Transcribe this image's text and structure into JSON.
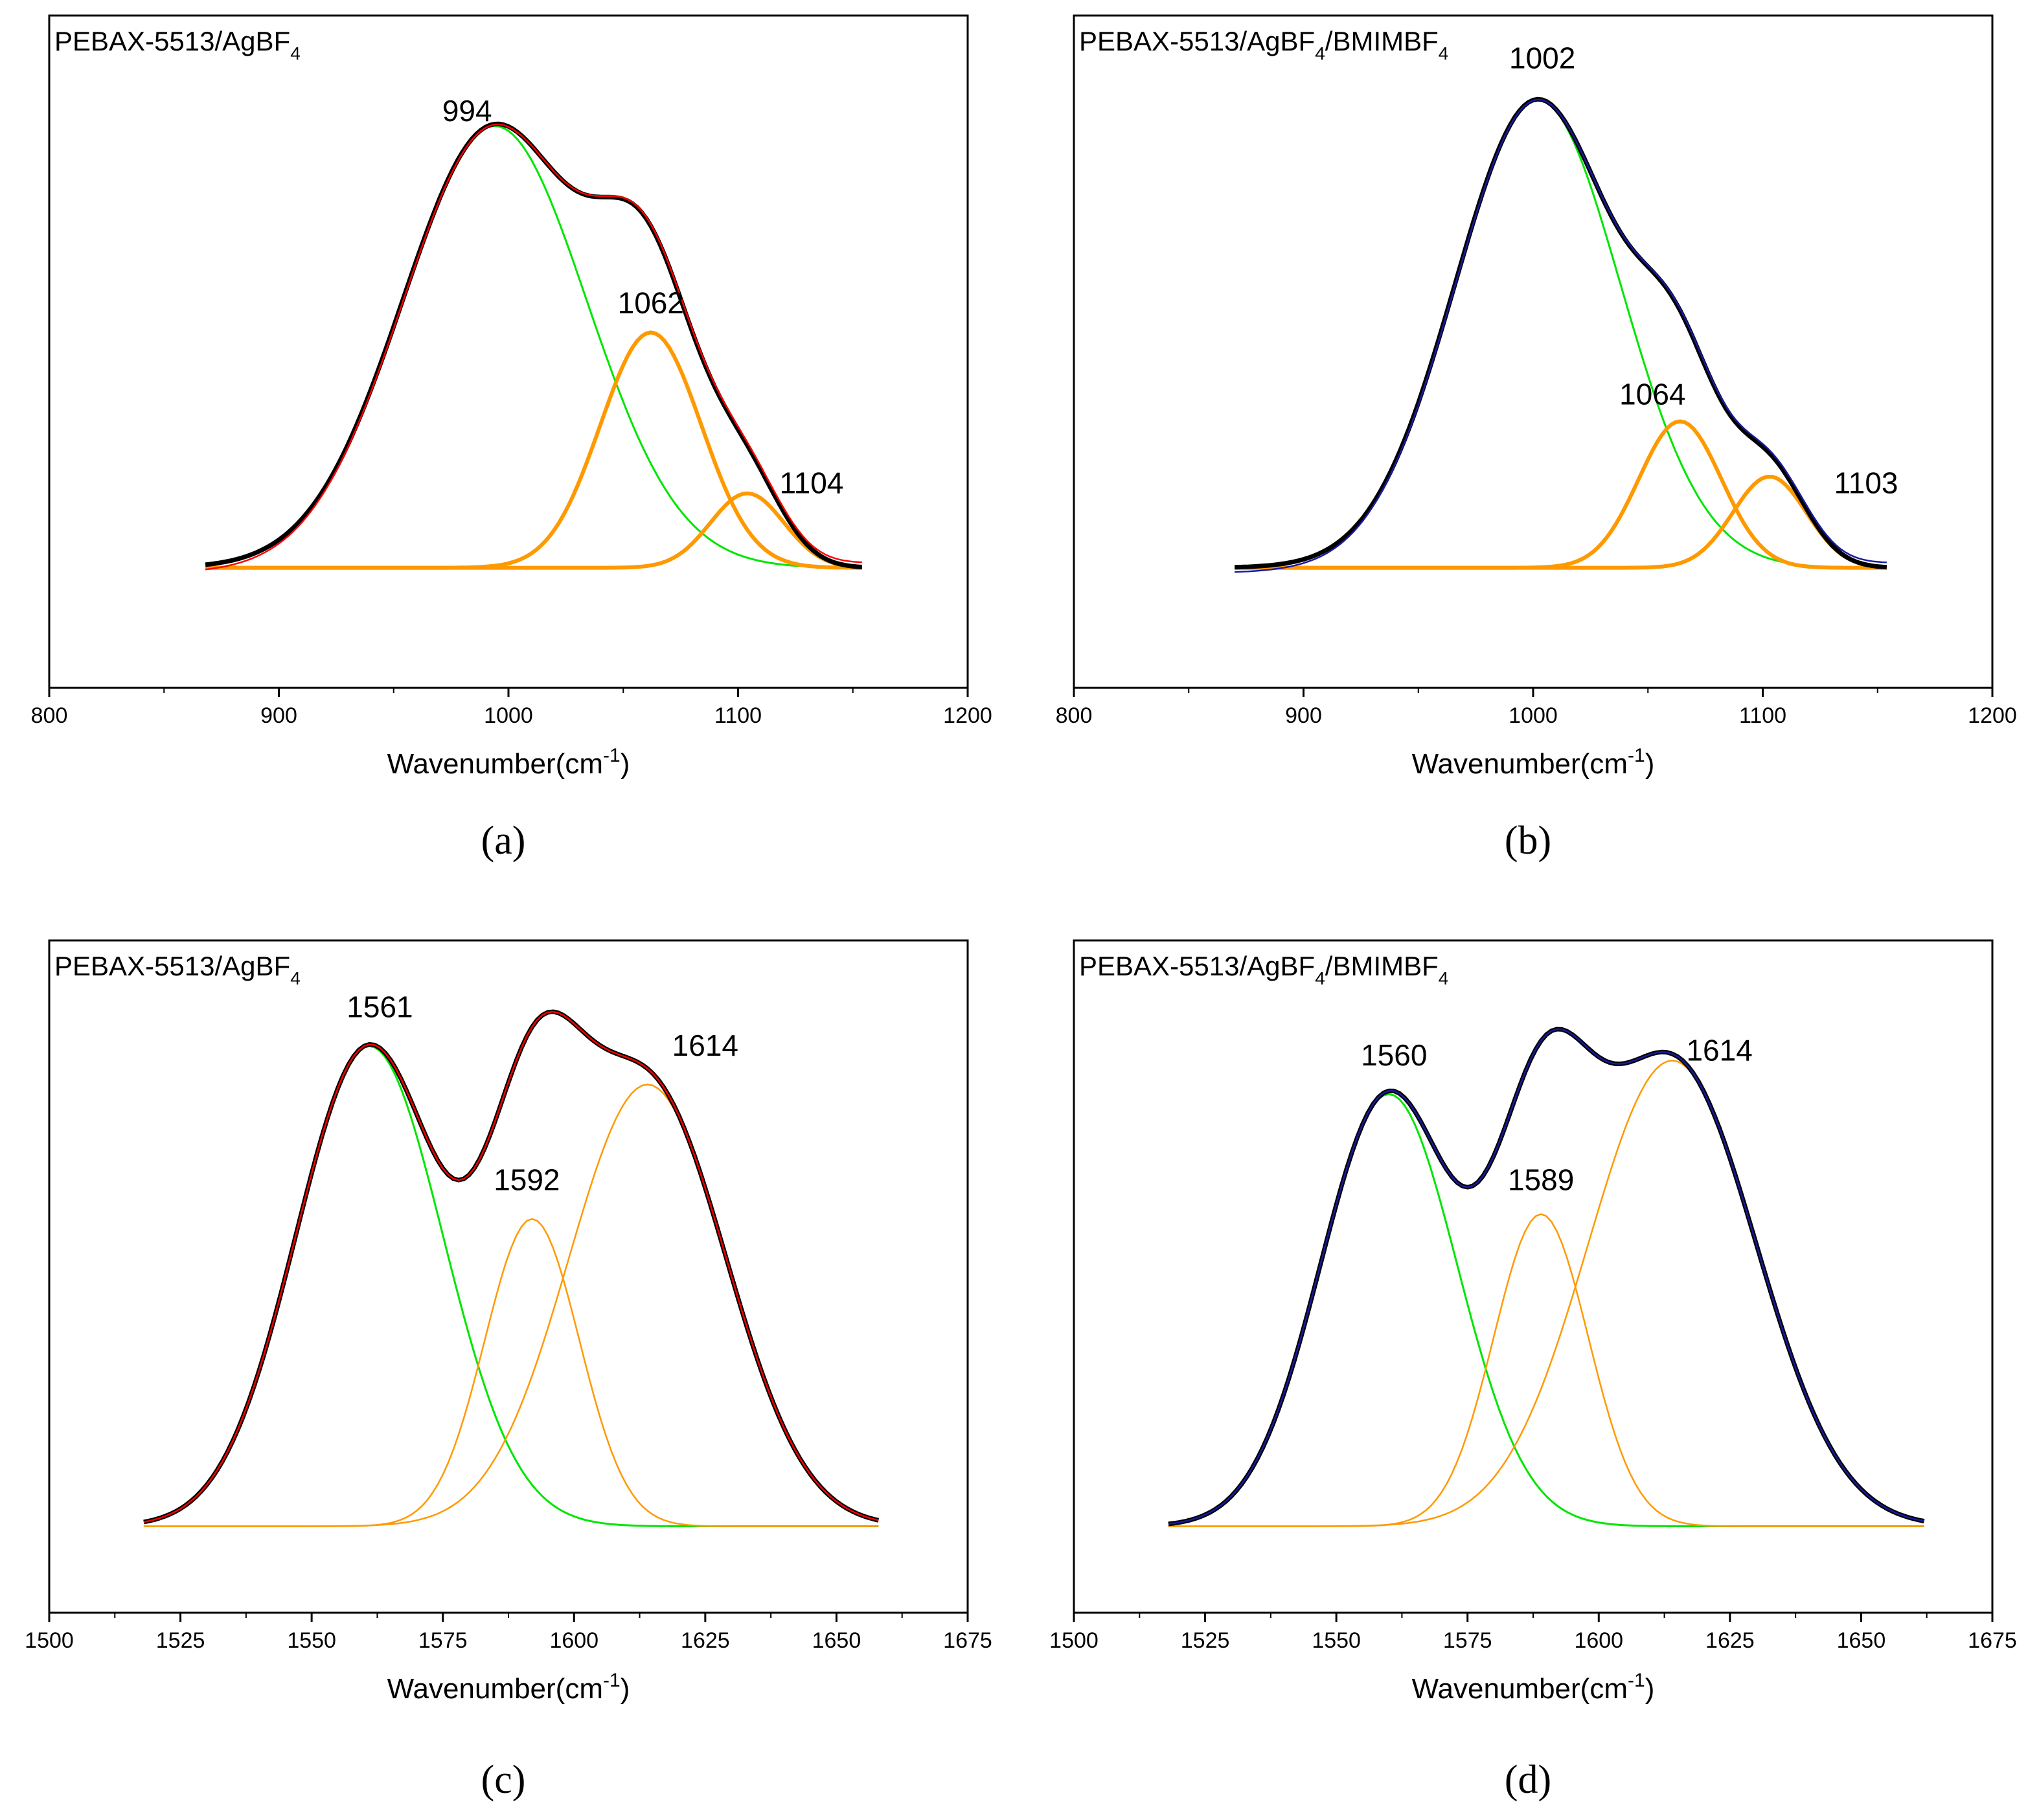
{
  "chart_data": [
    {
      "panel": "(a)",
      "type": "line",
      "title": "PEBAX-5513/AgBF",
      "title_sub": "4",
      "title_tail": "",
      "xlabel_main": "Wavenumber(cm",
      "xlabel_sup": "-1",
      "xlabel_tail": ")",
      "xlim": [
        800,
        1200
      ],
      "xticks": [
        800,
        900,
        1000,
        1100,
        1200
      ],
      "ylim": [
        -0.25,
        1.15
      ],
      "x_start": 868,
      "x_end": 1155,
      "x_step": 2,
      "baseline_trend": [
        -0.02,
        0.0
      ],
      "data_color": "#000000",
      "fit_color": "#ff0000",
      "components": [
        {
          "name": "peak 994",
          "center": 994,
          "width": 40,
          "height": 0.92,
          "color": "#00e600",
          "stroke": 3
        },
        {
          "name": "peak 1062",
          "center": 1062,
          "width": 22,
          "height": 0.49,
          "color": "#ff9900",
          "stroke": 6
        },
        {
          "name": "peak 1104",
          "center": 1104,
          "width": 16,
          "height": 0.155,
          "color": "#ff9900",
          "stroke": 6
        }
      ],
      "peak_labels": [
        {
          "text": "994",
          "x": 982,
          "y": 0.93
        },
        {
          "text": "1062",
          "x": 1062,
          "y": 0.53
        },
        {
          "text": "1104",
          "x": 1132,
          "y": 0.155
        }
      ]
    },
    {
      "panel": "(b)",
      "type": "line",
      "title": "PEBAX-5513/AgBF",
      "title_sub": "4",
      "title_tail": "/BMIMBF",
      "title_sub2": "4",
      "xlabel_main": "Wavenumber(cm",
      "xlabel_sup": "-1",
      "xlabel_tail": ")",
      "xlim": [
        800,
        1200
      ],
      "xticks": [
        800,
        900,
        1000,
        1100,
        1200
      ],
      "ylim": [
        -0.25,
        1.15
      ],
      "x_start": 870,
      "x_end": 1155,
      "x_step": 2,
      "baseline_trend": [
        -0.02,
        0.0
      ],
      "data_color": "#000000",
      "fit_color": "#1a1aa0",
      "components": [
        {
          "name": "peak 1002",
          "center": 1002,
          "width": 36,
          "height": 0.975,
          "color": "#00e600",
          "stroke": 3
        },
        {
          "name": "peak 1064",
          "center": 1064,
          "width": 18,
          "height": 0.305,
          "color": "#ff9900",
          "stroke": 6
        },
        {
          "name": "peak 1103",
          "center": 1103,
          "width": 16,
          "height": 0.19,
          "color": "#ff9900",
          "stroke": 6
        }
      ],
      "peak_labels": [
        {
          "text": "1002",
          "x": 1004,
          "y": 1.04
        },
        {
          "text": "1064",
          "x": 1052,
          "y": 0.34
        },
        {
          "text": "1103",
          "x": 1145,
          "y": 0.155
        }
      ]
    },
    {
      "panel": "(c)",
      "type": "line",
      "title": "PEBAX-5513/AgBF",
      "title_sub": "4",
      "title_tail": "",
      "xlabel_main": "Wavenumber(cm",
      "xlabel_sup": "-1",
      "xlabel_tail": ")",
      "xlim": [
        1500,
        1675
      ],
      "xticks": [
        1500,
        1525,
        1550,
        1575,
        1600,
        1625,
        1650,
        1675
      ],
      "ylim": [
        -0.18,
        1.22
      ],
      "x_start": 1518,
      "x_end": 1658,
      "x_step": 1,
      "baseline_trend": [
        -0.01,
        -0.01
      ],
      "data_color": "#000000",
      "fit_color": "#ff0000",
      "components": [
        {
          "name": "peak 1561",
          "center": 1561,
          "width": 14,
          "height": 1.0,
          "color": "#00e600",
          "stroke": 3
        },
        {
          "name": "peak 1592",
          "center": 1592,
          "width": 9,
          "height": 0.64,
          "color": "#ff9900",
          "stroke": 2.5
        },
        {
          "name": "peak 1614",
          "center": 1614,
          "width": 15,
          "height": 0.92,
          "color": "#ff9900",
          "stroke": 2.5
        }
      ],
      "peak_labels": [
        {
          "text": "1561",
          "x": 1563,
          "y": 1.06
        },
        {
          "text": "1592",
          "x": 1591,
          "y": 0.7
        },
        {
          "text": "1614",
          "x": 1625,
          "y": 0.98
        }
      ]
    },
    {
      "panel": "(d)",
      "type": "line",
      "title": "PEBAX-5513/AgBF",
      "title_sub": "4",
      "title_tail": "/BMIMBF",
      "title_sub2": "4",
      "xlabel_main": "Wavenumber(cm",
      "xlabel_sup": "-1",
      "xlabel_tail": ")",
      "xlim": [
        1500,
        1675
      ],
      "xticks": [
        1500,
        1525,
        1550,
        1575,
        1600,
        1625,
        1650,
        1675
      ],
      "ylim": [
        -0.18,
        1.22
      ],
      "x_start": 1518,
      "x_end": 1662,
      "x_step": 1,
      "baseline_trend": [
        -0.01,
        -0.01
      ],
      "data_color": "#000000",
      "fit_color": "#1a1aa0",
      "components": [
        {
          "name": "peak 1560",
          "center": 1560,
          "width": 13,
          "height": 0.9,
          "color": "#00e600",
          "stroke": 3
        },
        {
          "name": "peak 1589",
          "center": 1589,
          "width": 9,
          "height": 0.65,
          "color": "#ff9900",
          "stroke": 2.5
        },
        {
          "name": "peak 1614",
          "center": 1614,
          "width": 16,
          "height": 0.97,
          "color": "#ff9900",
          "stroke": 2.5
        }
      ],
      "peak_labels": [
        {
          "text": "1560",
          "x": 1561,
          "y": 0.96
        },
        {
          "text": "1589",
          "x": 1589,
          "y": 0.7
        },
        {
          "text": "1614",
          "x": 1623,
          "y": 0.97
        }
      ]
    }
  ]
}
